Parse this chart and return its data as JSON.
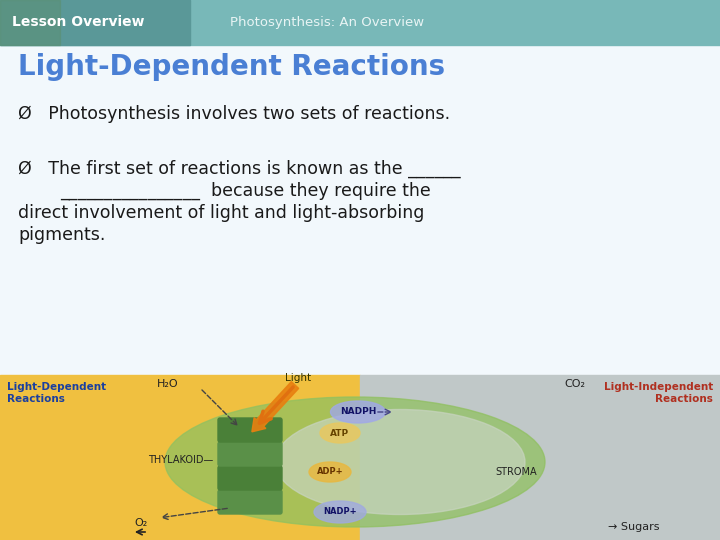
{
  "header_left_text": "Lesson Overview",
  "header_right_text": "Photosynthesis: An Overview",
  "title_text": "Light-Dependent Reactions",
  "title_color": "#4a7fd4",
  "title_fontsize": 20,
  "bullet_color": "#1a1a1a",
  "bullet_fontsize": 12.5,
  "bullet1": "Ø   Photosynthesis involves two sets of reactions.",
  "bullet2_line1": "Ø   The first set of reactions is known as the ______",
  "bullet2_line2": "________________  because they require the",
  "bullet2_line3": "direct involvement of light and light-absorbing",
  "bullet2_line4": "pigments.",
  "bg_color_main": "#eef5fa",
  "diagram_left_bg": "#f0c040",
  "diagram_right_bg": "#c0c8c8",
  "diagram_label_left_color": "#1a3fa0",
  "diagram_label_right_color": "#b03020",
  "fig_width": 7.2,
  "fig_height": 5.4,
  "dpi": 100
}
